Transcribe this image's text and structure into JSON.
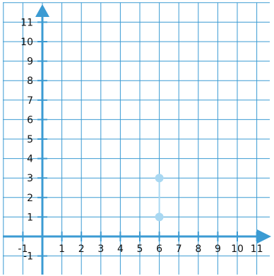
{
  "chart_data": {
    "type": "scatter",
    "x_range": [
      -1,
      11
    ],
    "y_range": [
      -1,
      11
    ],
    "grid": true,
    "x_ticks": [
      -1,
      1,
      2,
      3,
      4,
      5,
      6,
      7,
      8,
      9,
      10,
      11
    ],
    "y_ticks": [
      -1,
      1,
      2,
      3,
      4,
      5,
      6,
      7,
      8,
      9,
      10,
      11
    ],
    "x_tick_labels": [
      "-1",
      "1",
      "2",
      "3",
      "4",
      "5",
      "6",
      "7",
      "8",
      "9",
      "10",
      "11"
    ],
    "y_tick_labels": [
      "-1",
      "1",
      "2",
      "3",
      "4",
      "5",
      "6",
      "7",
      "8",
      "9",
      "10",
      "11"
    ],
    "points": [
      {
        "x": 6,
        "y": 1
      },
      {
        "x": 6,
        "y": 3
      }
    ],
    "segments": [
      {
        "from": [
          6,
          1
        ],
        "to": [
          6,
          3
        ]
      }
    ]
  },
  "colors": {
    "grid": "#3b9bd3",
    "axis": "#3b9bd3",
    "point": "#a9d8f2",
    "segment": "#a9d8f2"
  }
}
